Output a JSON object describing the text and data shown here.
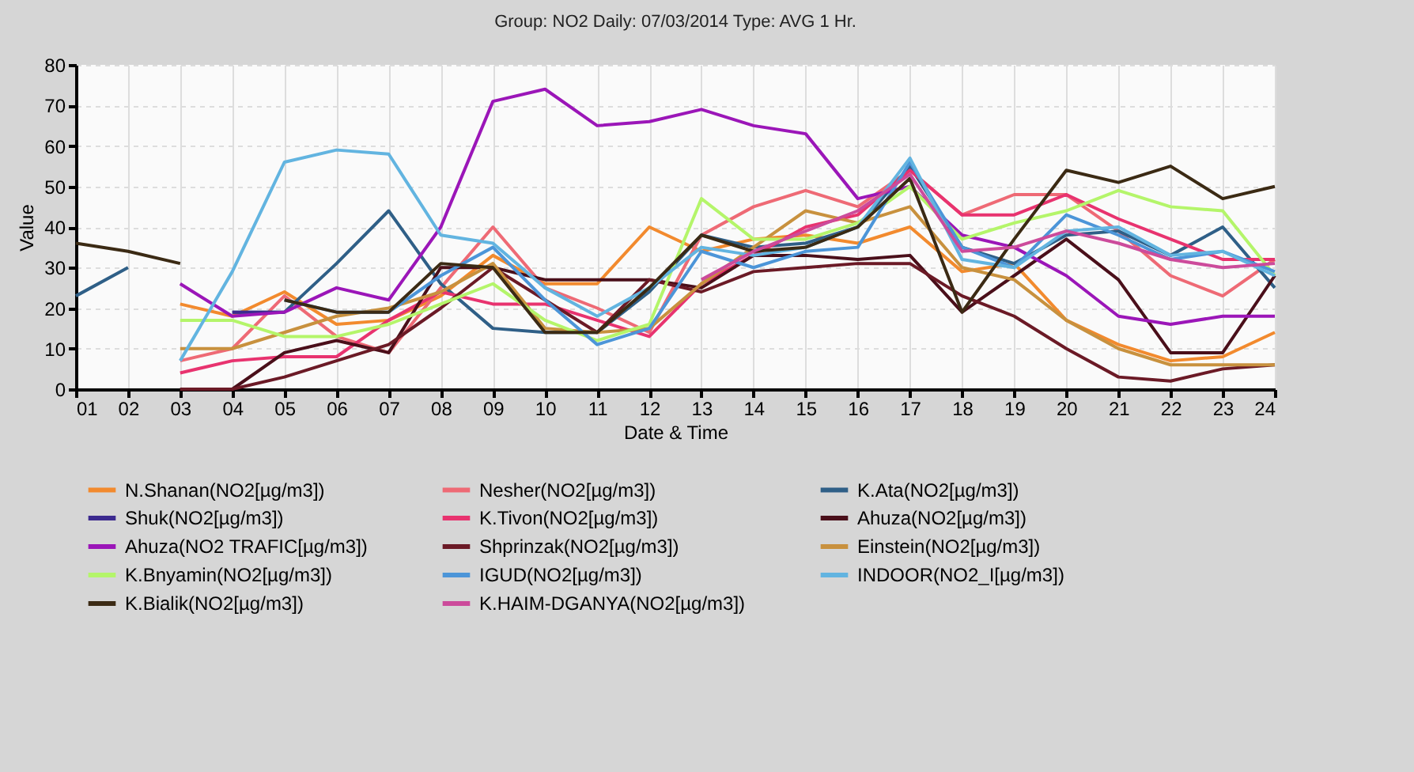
{
  "chart_data": {
    "type": "line",
    "title": "Group: NO2 Daily: 07/03/2014  Type: AVG 1 Hr.",
    "xlabel": "Date & Time",
    "ylabel": "Value",
    "categories": [
      "01",
      "02",
      "03",
      "04",
      "05",
      "06",
      "07",
      "08",
      "09",
      "10",
      "11",
      "12",
      "13",
      "14",
      "15",
      "16",
      "17",
      "18",
      "19",
      "20",
      "21",
      "22",
      "23",
      "24"
    ],
    "ylim": [
      0,
      80
    ],
    "yticks": [
      0,
      10,
      20,
      30,
      40,
      50,
      60,
      70,
      80
    ],
    "grid": true,
    "legend": "bottom",
    "marker": "none",
    "line_style": "solid",
    "series": [
      {
        "name": "N.Shanan(NO2[µg/m3])",
        "color": "#f28a2e",
        "values": [
          null,
          null,
          21,
          18,
          24,
          16,
          17,
          23,
          33,
          26,
          26,
          40,
          34,
          37,
          38,
          36,
          40,
          29,
          31,
          17,
          11,
          7,
          8,
          14
        ]
      },
      {
        "name": "Nesher(NO2[µg/m3])",
        "color": "#ee6a75",
        "values": [
          null,
          null,
          7,
          10,
          23,
          13,
          9,
          25,
          40,
          25,
          20,
          14,
          38,
          45,
          49,
          45,
          54,
          43,
          48,
          48,
          39,
          28,
          23,
          32
        ]
      },
      {
        "name": "K.Ata(NO2[µg/m3])",
        "color": "#2f5f87",
        "values": [
          23,
          30,
          null,
          19,
          19,
          31,
          44,
          26,
          15,
          14,
          14,
          24,
          38,
          35,
          36,
          40,
          55,
          35,
          31,
          38,
          39,
          33,
          40,
          25
        ]
      },
      {
        "name": "Shuk(NO2[µg/m3])",
        "color": "#3c2a8f",
        "values": [
          null,
          null,
          null,
          19,
          19,
          null,
          null,
          null,
          null,
          null,
          null,
          null,
          null,
          null,
          null,
          null,
          null,
          null,
          null,
          null,
          null,
          null,
          null,
          null
        ]
      },
      {
        "name": "K.Tivon(NO2[µg/m3])",
        "color": "#e8336f",
        "values": [
          null,
          null,
          4,
          7,
          8,
          8,
          17,
          24,
          21,
          21,
          17,
          13,
          26,
          33,
          40,
          43,
          54,
          43,
          43,
          48,
          42,
          37,
          32,
          32
        ]
      },
      {
        "name": "Ahuza(NO2[µg/m3])",
        "color": "#4a0f1a",
        "values": [
          null,
          null,
          0,
          0,
          9,
          12,
          9,
          30,
          30,
          27,
          27,
          27,
          25,
          33,
          33,
          32,
          33,
          19,
          28,
          37,
          27,
          9,
          9,
          28
        ]
      },
      {
        "name": "Ahuza(NO2 TRAFIC[µg/m3])",
        "color": "#9b16b8",
        "values": [
          null,
          null,
          26,
          18,
          19,
          25,
          22,
          40,
          71,
          74,
          65,
          66,
          69,
          65,
          63,
          47,
          50,
          38,
          35,
          28,
          18,
          16,
          18,
          18
        ]
      },
      {
        "name": "Shprinzak(NO2[µg/m3])",
        "color": "#6b1a26",
        "values": [
          null,
          null,
          0,
          0,
          3,
          7,
          11,
          20,
          30,
          22,
          14,
          27,
          24,
          29,
          30,
          31,
          31,
          23,
          18,
          10,
          3,
          2,
          5,
          6
        ]
      },
      {
        "name": "Einstein(NO2[µg/m3])",
        "color": "#c8913e",
        "values": [
          null,
          null,
          10,
          10,
          14,
          18,
          20,
          24,
          31,
          15,
          14,
          15,
          26,
          35,
          44,
          41,
          45,
          30,
          27,
          17,
          10,
          6,
          6,
          6
        ]
      },
      {
        "name": "K.Bnyamin(NO2[µg/m3])",
        "color": "#b4f56a",
        "values": [
          null,
          null,
          17,
          17,
          13,
          13,
          16,
          21,
          26,
          17,
          12,
          16,
          47,
          37,
          37,
          41,
          50,
          37,
          41,
          44,
          49,
          45,
          44,
          28
        ]
      },
      {
        "name": "IGUD(NO2[µg/m3])",
        "color": "#4c95d8",
        "values": [
          null,
          null,
          null,
          null,
          22,
          19,
          19,
          28,
          35,
          22,
          11,
          15,
          34,
          30,
          34,
          35,
          56,
          35,
          30,
          43,
          38,
          32,
          34,
          29
        ]
      },
      {
        "name": "INDOOR(NO2_I[µg/m3])",
        "color": "#62b4e0",
        "values": [
          null,
          null,
          7,
          29,
          56,
          59,
          58,
          38,
          36,
          25,
          18,
          25,
          35,
          33,
          35,
          40,
          57,
          32,
          30,
          39,
          40,
          33,
          34,
          28
        ]
      },
      {
        "name": "K.Bialik(NO2[µg/m3])",
        "color": "#3b2a14",
        "values": [
          36,
          34,
          31,
          null,
          22,
          19,
          19,
          31,
          30,
          14,
          14,
          25,
          38,
          34,
          35,
          40,
          52,
          19,
          37,
          54,
          51,
          55,
          47,
          50
        ]
      },
      {
        "name": "K.HAIM-DGANYA(NO2[µg/m3])",
        "color": "#cc4b9b",
        "values": [
          null,
          null,
          null,
          null,
          null,
          null,
          null,
          null,
          null,
          null,
          null,
          null,
          27,
          34,
          39,
          44,
          53,
          34,
          35,
          39,
          36,
          32,
          30,
          31
        ]
      }
    ]
  }
}
